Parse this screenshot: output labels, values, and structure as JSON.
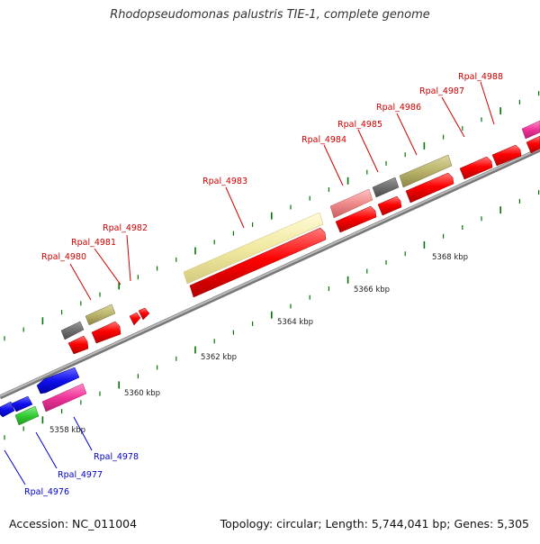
{
  "title": "Rhodopseudomonas palustris TIE-1, complete genome",
  "footer": {
    "accession": "Accession: NC_011004",
    "topology": "Topology: circular;",
    "length": "Length: 5,744,041 bp;",
    "genes": "Genes: 5,305"
  },
  "scale_labels": [
    "5358 kbp",
    "5360 kbp",
    "5362 kbp",
    "5364 kbp",
    "5366 kbp",
    "5368 kbp"
  ],
  "gene_labels": {
    "forward": [
      "Rpal_4980",
      "Rpal_4981",
      "Rpal_4982",
      "Rpal_4983",
      "Rpal_4984",
      "Rpal_4985",
      "Rpal_4986",
      "Rpal_4987",
      "Rpal_4988"
    ],
    "reverse": [
      "Rpal_4976",
      "Rpal_4977",
      "Rpal_4978"
    ]
  },
  "colors": {
    "forward_label": "#cc0000",
    "reverse_label": "#0000cc",
    "cds_red": "#ff0000",
    "cds_khaki": "#b8b26a",
    "cds_pale_yellow": "#f1e9a0",
    "cds_pink": "#f08a8a",
    "cds_gray": "#6e6e6e",
    "cds_blue": "#1010ee",
    "cds_green": "#33cc33",
    "cds_magenta": "#ee3399",
    "backbone": "#999999",
    "tick": "#007700"
  }
}
